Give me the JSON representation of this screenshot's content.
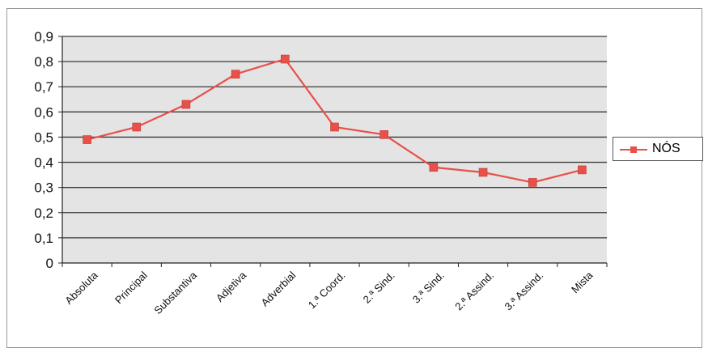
{
  "chart_data": {
    "type": "line",
    "title": "",
    "xlabel": "",
    "ylabel": "",
    "ylim": [
      0,
      0.9
    ],
    "y_ticks": [
      "0",
      "0,1",
      "0,2",
      "0,3",
      "0,4",
      "0,5",
      "0,6",
      "0,7",
      "0,8",
      "0,9"
    ],
    "categories": [
      "Absoluta",
      "Principal",
      "Substantiva",
      "Adjetiva",
      "Adverbial",
      "1.ª Coord.",
      "2.ª Sind.",
      "3.ª Sind.",
      "2.ª Assind.",
      "3.ª Assind.",
      "Mista"
    ],
    "series": [
      {
        "name": "NÓS",
        "values": [
          0.49,
          0.54,
          0.63,
          0.75,
          0.81,
          0.54,
          0.51,
          0.38,
          0.36,
          0.32,
          0.37
        ],
        "color": "#e8504a"
      }
    ],
    "grid": true,
    "legend_position": "right",
    "plot_background": "#e4e4e4",
    "gridline_color": "#3a3a3a"
  }
}
